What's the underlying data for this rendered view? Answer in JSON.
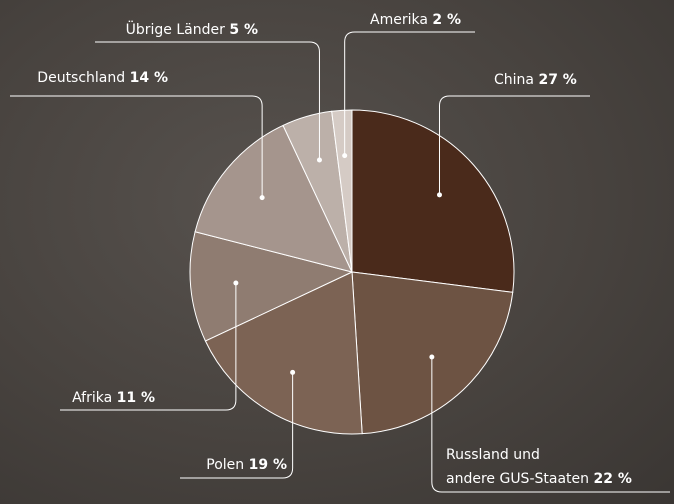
{
  "chart_data": {
    "type": "pie",
    "categories": [
      "China",
      "Russland und\nandere GUS-Staaten",
      "Polen",
      "Afrika",
      "Deutschland",
      "Übrige Länder",
      "Amerika"
    ],
    "values": [
      27,
      22,
      19,
      11,
      14,
      5,
      2
    ],
    "value_labels": [
      "27 %",
      "22 %",
      "19 %",
      "11 %",
      "14 %",
      "5 %",
      "2 %"
    ],
    "colors": [
      "#4a2a1b",
      "#6d5343",
      "#7c6354",
      "#8f7c71",
      "#a5958d",
      "#bcb0a9",
      "#d5cbc5"
    ]
  }
}
